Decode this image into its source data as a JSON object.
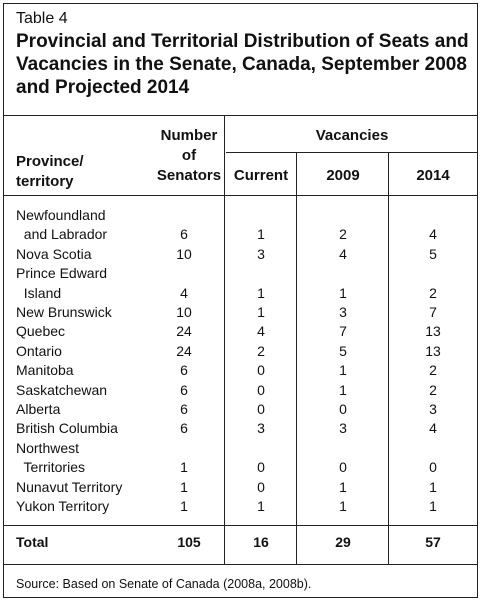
{
  "table": {
    "number": "Table 4",
    "title": "Provincial and Territorial Distribution of Seats and Vacancies in the Senate, Canada, September 2008 and Projected 2014",
    "title_lines": [
      "Provincial and Territorial Distribution of Seats and",
      "Vacancies in the Senate, Canada, September 2008",
      "and Projected 2014"
    ]
  },
  "headers": {
    "province": [
      "Province/",
      "territory"
    ],
    "senators": [
      "Number",
      "of",
      "Senators"
    ],
    "vacancies": "Vacancies",
    "current": "Current",
    "y2009": "2009",
    "y2014": "2014"
  },
  "rows": [
    {
      "name": "Newfoundland",
      "senators": "",
      "current": "",
      "y2009": "",
      "y2014": ""
    },
    {
      "name": "  and Labrador",
      "senators": "6",
      "current": "1",
      "y2009": "2",
      "y2014": "4"
    },
    {
      "name": "Nova Scotia",
      "senators": "10",
      "current": "3",
      "y2009": "4",
      "y2014": "5"
    },
    {
      "name": "Prince Edward",
      "senators": "",
      "current": "",
      "y2009": "",
      "y2014": ""
    },
    {
      "name": "  Island",
      "senators": "4",
      "current": "1",
      "y2009": "1",
      "y2014": "2"
    },
    {
      "name": "New Brunswick",
      "senators": "10",
      "current": "1",
      "y2009": "3",
      "y2014": "7"
    },
    {
      "name": "Quebec",
      "senators": "24",
      "current": "4",
      "y2009": "7",
      "y2014": "13"
    },
    {
      "name": "Ontario",
      "senators": "24",
      "current": "2",
      "y2009": "5",
      "y2014": "13"
    },
    {
      "name": "Manitoba",
      "senators": "6",
      "current": "0",
      "y2009": "1",
      "y2014": "2"
    },
    {
      "name": "Saskatchewan",
      "senators": "6",
      "current": "0",
      "y2009": "1",
      "y2014": "2"
    },
    {
      "name": "Alberta",
      "senators": "6",
      "current": "0",
      "y2009": "0",
      "y2014": "3"
    },
    {
      "name": "British Columbia",
      "senators": "6",
      "current": "3",
      "y2009": "3",
      "y2014": "4"
    },
    {
      "name": "Northwest",
      "senators": "",
      "current": "",
      "y2009": "",
      "y2014": ""
    },
    {
      "name": "  Territories",
      "senators": "1",
      "current": "0",
      "y2009": "0",
      "y2014": "0"
    },
    {
      "name": "Nunavut Territory",
      "senators": "1",
      "current": "0",
      "y2009": "1",
      "y2014": "1"
    },
    {
      "name": "Yukon Territory",
      "senators": "1",
      "current": "1",
      "y2009": "1",
      "y2014": "1"
    }
  ],
  "total": {
    "label": "Total",
    "senators": "105",
    "current": "16",
    "y2009": "29",
    "y2014": "57"
  },
  "source": "Source: Based on Senate of Canada (2008a, 2008b)."
}
